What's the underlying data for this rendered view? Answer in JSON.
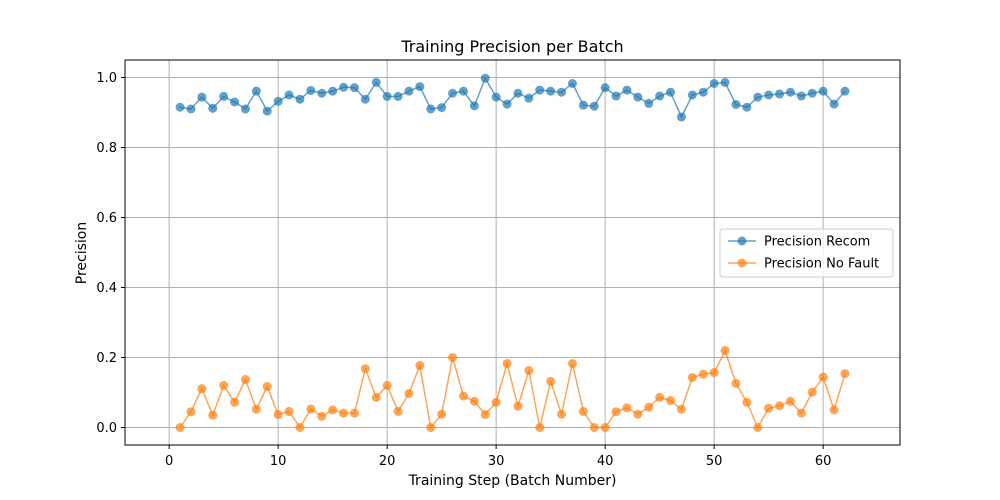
{
  "chart_data": {
    "type": "line",
    "title": "Training Precision per Batch",
    "xlabel": "Training Step (Batch Number)",
    "ylabel": "Precision",
    "xlim": [
      -4.05,
      67.05
    ],
    "ylim": [
      -0.05,
      1.05
    ],
    "x_ticks": [
      0,
      10,
      20,
      30,
      40,
      50,
      60
    ],
    "y_ticks": [
      0.0,
      0.2,
      0.4,
      0.6,
      0.8,
      1.0
    ],
    "grid": true,
    "legend_position": "center-right",
    "x": [
      1,
      2,
      3,
      4,
      5,
      6,
      7,
      8,
      9,
      10,
      11,
      12,
      13,
      14,
      15,
      16,
      17,
      18,
      19,
      20,
      21,
      22,
      23,
      24,
      25,
      26,
      27,
      28,
      29,
      30,
      31,
      32,
      33,
      34,
      35,
      36,
      37,
      38,
      39,
      40,
      41,
      42,
      43,
      44,
      45,
      46,
      47,
      48,
      49,
      50,
      51,
      52,
      53,
      54,
      55,
      56,
      57,
      58,
      59,
      60,
      61,
      62
    ],
    "series": [
      {
        "name": "Precision Recom",
        "color": "#1f77b4",
        "values": [
          0.915,
          0.91,
          0.944,
          0.912,
          0.946,
          0.93,
          0.91,
          0.961,
          0.904,
          0.932,
          0.95,
          0.938,
          0.963,
          0.955,
          0.961,
          0.972,
          0.971,
          0.938,
          0.986,
          0.946,
          0.946,
          0.961,
          0.974,
          0.91,
          0.914,
          0.955,
          0.961,
          0.919,
          0.998,
          0.944,
          0.924,
          0.955,
          0.941,
          0.964,
          0.961,
          0.958,
          0.983,
          0.921,
          0.918,
          0.971,
          0.947,
          0.964,
          0.944,
          0.926,
          0.947,
          0.958,
          0.887,
          0.95,
          0.958,
          0.983,
          0.986,
          0.923,
          0.915,
          0.944,
          0.95,
          0.953,
          0.958,
          0.947,
          0.955,
          0.961,
          0.924,
          0.961
        ]
      },
      {
        "name": "Precision No Fault",
        "color": "#ff7f0e",
        "values": [
          0.0,
          0.045,
          0.111,
          0.035,
          0.12,
          0.072,
          0.137,
          0.052,
          0.117,
          0.037,
          0.046,
          0.0,
          0.053,
          0.032,
          0.05,
          0.041,
          0.041,
          0.168,
          0.086,
          0.12,
          0.046,
          0.097,
          0.177,
          0.0,
          0.038,
          0.2,
          0.09,
          0.075,
          0.037,
          0.072,
          0.183,
          0.061,
          0.163,
          0.0,
          0.132,
          0.038,
          0.183,
          0.046,
          0.0,
          0.0,
          0.045,
          0.056,
          0.038,
          0.058,
          0.086,
          0.077,
          0.052,
          0.143,
          0.152,
          0.157,
          0.22,
          0.126,
          0.072,
          0.0,
          0.055,
          0.062,
          0.075,
          0.041,
          0.101,
          0.144,
          0.05,
          0.154
        ]
      }
    ]
  }
}
